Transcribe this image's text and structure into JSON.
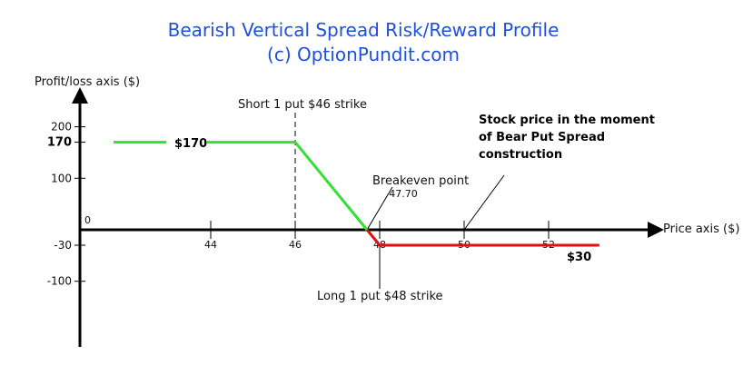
{
  "chart_data": {
    "type": "line",
    "title": "Bearish Vertical Spread Risk/Reward Profile",
    "subtitle": "(c) OptionPundit.com",
    "ylabel": "Profit/loss axis ($)",
    "xlabel": "Price axis ($)",
    "origin_label": "0",
    "x_ticks": [
      "44",
      "46",
      "48",
      "50",
      "52"
    ],
    "y_ticks": [
      "200",
      "170",
      "100",
      "-30",
      "-100"
    ],
    "xlim": [
      41.7,
      57.3
    ],
    "ylim": [
      -160,
      250
    ],
    "profit_series": {
      "name": "",
      "color": "#33e033",
      "x": [
        41.7,
        46,
        47.7
      ],
      "y": [
        170,
        170,
        0
      ]
    },
    "loss_series": {
      "name": "",
      "color": "#e01010",
      "x": [
        47.7,
        48,
        53.2
      ],
      "y": [
        0,
        -30,
        -30
      ]
    },
    "annotations": {
      "max_profit": "$170",
      "max_loss": "$30",
      "short_put": "Short 1 put $46 strike",
      "long_put": "Long 1 put $48 strike",
      "breakeven_title": "Breakeven point",
      "breakeven_value": "47.70",
      "stock_price_line1": "Stock price in the moment",
      "stock_price_line2": "of Bear Put Spread",
      "stock_price_line3": "construction"
    }
  }
}
